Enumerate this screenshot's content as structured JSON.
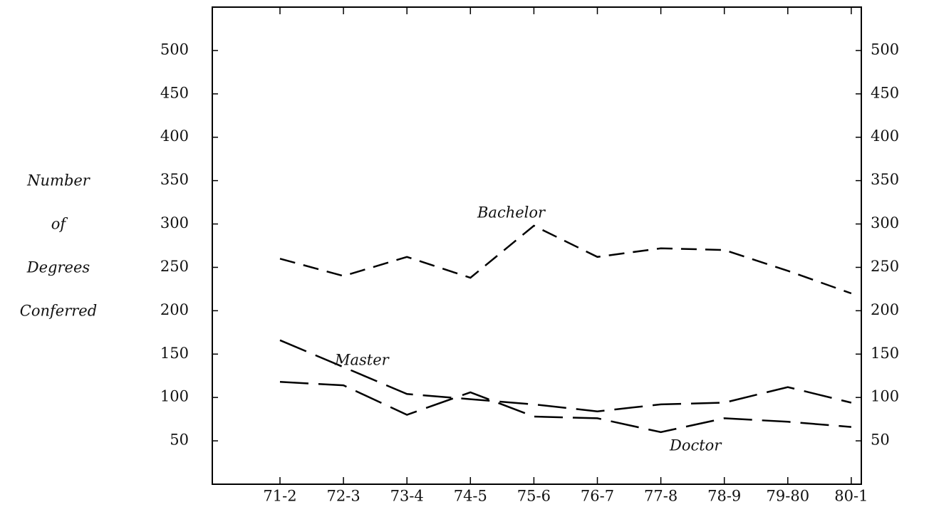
{
  "chart_data": {
    "type": "line",
    "y_axis_label": [
      "Number",
      "of",
      "Degrees",
      "Conferred"
    ],
    "categories": [
      "71-2",
      "72-3",
      "73-4",
      "74-5",
      "75-6",
      "76-7",
      "77-8",
      "78-9",
      "79-80",
      "80-1"
    ],
    "series": [
      {
        "name": "Bachelor",
        "color": "#000000",
        "linestyle": "dashed",
        "values": [
          260,
          240,
          262,
          238,
          298,
          262,
          272,
          270,
          246,
          220
        ]
      },
      {
        "name": "Master",
        "color": "#000000",
        "linestyle": "long-dashed",
        "values": [
          166,
          135,
          104,
          98,
          92,
          84,
          92,
          94,
          112,
          94
        ]
      },
      {
        "name": "Doctor",
        "color": "#000000",
        "linestyle": "long-dashed",
        "values": [
          118,
          114,
          80,
          106,
          78,
          76,
          60,
          76,
          72,
          66
        ]
      }
    ],
    "ylim": [
      0,
      550
    ],
    "yticks": [
      50,
      100,
      150,
      200,
      250,
      300,
      350,
      400,
      450,
      500
    ],
    "y2lim": [
      0,
      550
    ],
    "y2ticks": [
      50,
      100,
      150,
      200,
      250,
      300,
      350,
      400,
      450,
      500
    ],
    "grid": false
  }
}
